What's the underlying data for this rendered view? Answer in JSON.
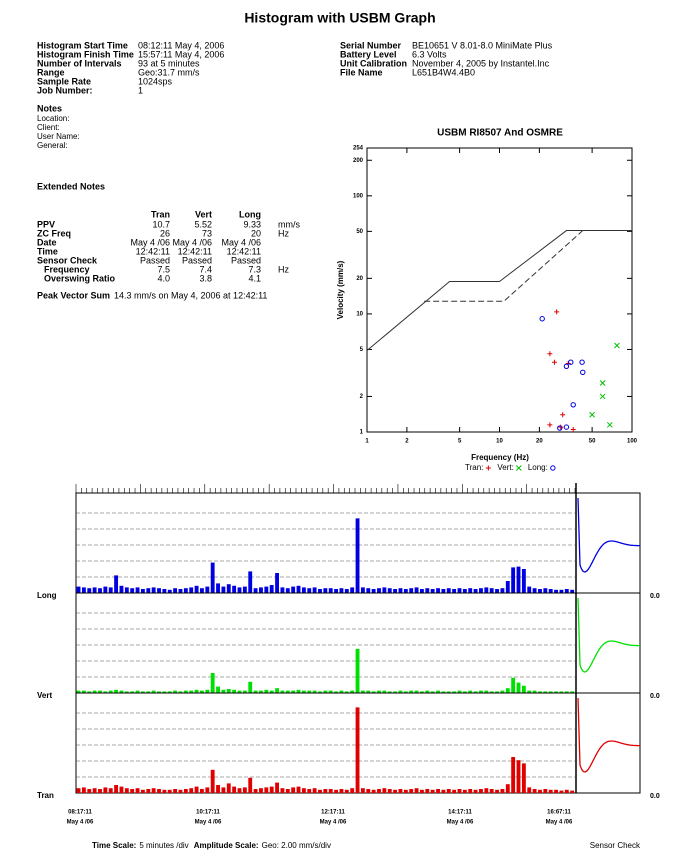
{
  "title": "Histogram with USBM Graph",
  "header_left": [
    {
      "label": "Histogram Start Time",
      "value": "08:12:11 May 4, 2006"
    },
    {
      "label": "Histogram Finish Time",
      "value": "15:57:11 May 4, 2006"
    },
    {
      "label": "Number of Intervals",
      "value": "93 at 5 minutes"
    },
    {
      "label": "Range",
      "value": "Geo:31.7 mm/s"
    },
    {
      "label": "Sample Rate",
      "value": "1024sps"
    },
    {
      "label": "Job Number:",
      "value": "1"
    }
  ],
  "notes": {
    "title": "Notes",
    "fields": [
      "Location:",
      "Client:",
      "User Name:",
      "General:"
    ]
  },
  "header_right": [
    {
      "label": "Serial Number",
      "value": "BE10651 V 8.01-8.0 MiniMate Plus"
    },
    {
      "label": "Battery Level",
      "value": "6.3 Volts"
    },
    {
      "label": "Unit Calibration",
      "value": "November 4, 2005 by Instantel.Inc"
    },
    {
      "label": "File Name",
      "value": "L651B4W4.4B0"
    }
  ],
  "extended_notes": {
    "title": "Extended Notes",
    "columns": [
      "Tran",
      "Vert",
      "Long"
    ],
    "rows": [
      {
        "label": "PPV",
        "values": [
          "10.7",
          "5.52",
          "9.33"
        ],
        "unit": "mm/s"
      },
      {
        "label": "ZC Freq",
        "values": [
          "26",
          "73",
          "20"
        ],
        "unit": "Hz"
      },
      {
        "label": "Date",
        "values": [
          "May 4 /06",
          "May 4 /06",
          "May 4 /06"
        ]
      },
      {
        "label": "Time",
        "values": [
          "12:42:11",
          "12:42:11",
          "12:42:11"
        ]
      },
      {
        "label": "Sensor Check",
        "values": [
          "Passed",
          "Passed",
          "Passed"
        ],
        "rows": [
          {
            "label": "Frequency",
            "values": [
              "7.5",
              "7.4",
              "7.3"
            ],
            "unit": "Hz"
          },
          {
            "label": "Overswing Ratio",
            "values": [
              "4.0",
              "3.8",
              "4.1"
            ]
          }
        ]
      }
    ]
  },
  "peak_vector_sum": {
    "label": "Peak Vector Sum",
    "value": "14.3 mm/s on May 4, 2006 at 12:42:11"
  },
  "usbm_chart": {
    "type": "scatter",
    "title": "USBM RI8507 And OSMRE",
    "x_label": "Frequency (Hz)",
    "y_label": "Velocity (mm/s)",
    "log_scale": true,
    "xlim": [
      1,
      100
    ],
    "ylim": [
      1,
      254
    ],
    "xticks": [
      1,
      2,
      5,
      10,
      20,
      50,
      100
    ],
    "yticks": [
      1,
      2,
      5,
      10,
      20,
      50,
      100,
      200,
      254
    ],
    "series": [
      {
        "name": "Tran:",
        "color": "#e00000",
        "marker": "plus",
        "x": [
          27,
          24,
          26,
          33,
          30,
          24,
          29,
          36
        ],
        "values": [
          10.4,
          4.6,
          3.9,
          3.8,
          1.4,
          1.15,
          1.1,
          1.05
        ]
      },
      {
        "name": "Vert:",
        "color": "#00c000",
        "marker": "cross",
        "x": [
          77,
          60,
          60,
          50,
          68
        ],
        "values": [
          5.4,
          2.6,
          2.0,
          1.4,
          1.15
        ]
      },
      {
        "name": "Long:",
        "color": "#0000e0",
        "marker": "circle",
        "x": [
          21,
          34.5,
          32,
          42.5,
          36,
          32,
          28.5,
          42
        ],
        "values": [
          9.1,
          3.9,
          3.6,
          3.2,
          1.7,
          1.1,
          1.08,
          3.9
        ]
      }
    ],
    "limit_lines": [
      {
        "style": "solid",
        "x": [
          1,
          4.2,
          10,
          32,
          100
        ],
        "values": [
          4.9,
          18.8,
          18.8,
          50.8,
          50.8
        ]
      },
      {
        "style": "dashed",
        "x": [
          2.7,
          10.8,
          42.5
        ],
        "values": [
          12.8,
          12.8,
          50.8
        ]
      }
    ]
  },
  "histogram": {
    "type": "bar",
    "ylim": [
      0,
      12.5
    ],
    "gridlines": [
      2,
      4,
      6,
      8,
      10
    ],
    "channels": [
      {
        "name": "Long",
        "color": "#0000e0",
        "scale_label": "0.0",
        "values": [
          0.8,
          0.7,
          0.6,
          0.7,
          0.6,
          0.8,
          0.7,
          2.2,
          0.9,
          0.7,
          0.6,
          0.7,
          0.5,
          0.6,
          0.7,
          0.6,
          0.5,
          0.4,
          0.6,
          0.5,
          0.6,
          0.7,
          0.9,
          0.6,
          0.8,
          3.8,
          1.2,
          0.8,
          1.1,
          0.9,
          0.7,
          0.8,
          2.7,
          0.6,
          0.7,
          0.8,
          1.0,
          2.5,
          0.7,
          0.6,
          0.8,
          0.9,
          0.7,
          0.6,
          0.7,
          0.5,
          0.6,
          0.6,
          0.5,
          0.6,
          0.5,
          0.7,
          9.33,
          0.7,
          0.6,
          0.5,
          0.6,
          0.7,
          0.6,
          0.5,
          0.6,
          0.5,
          0.6,
          0.7,
          0.5,
          0.6,
          0.5,
          0.6,
          0.5,
          0.6,
          0.5,
          0.6,
          0.5,
          0.6,
          0.5,
          0.6,
          0.7,
          0.6,
          0.5,
          0.6,
          1.5,
          3.2,
          3.3,
          3.0,
          0.8,
          0.6,
          0.5,
          0.6,
          0.5,
          0.4,
          0.4,
          0.5,
          0.4
        ]
      },
      {
        "name": "Vert",
        "color": "#00e000",
        "scale_label": "0.0",
        "values": [
          0.3,
          0.3,
          0.2,
          0.3,
          0.3,
          0.2,
          0.3,
          0.4,
          0.3,
          0.2,
          0.2,
          0.3,
          0.2,
          0.2,
          0.3,
          0.2,
          0.2,
          0.2,
          0.3,
          0.2,
          0.3,
          0.3,
          0.4,
          0.3,
          0.4,
          2.5,
          0.8,
          0.4,
          0.5,
          0.4,
          0.3,
          0.3,
          1.4,
          0.3,
          0.3,
          0.4,
          0.3,
          0.6,
          0.3,
          0.3,
          0.3,
          0.4,
          0.3,
          0.3,
          0.3,
          0.2,
          0.3,
          0.3,
          0.2,
          0.3,
          0.2,
          0.3,
          5.52,
          0.3,
          0.3,
          0.2,
          0.3,
          0.3,
          0.2,
          0.2,
          0.3,
          0.2,
          0.3,
          0.3,
          0.2,
          0.3,
          0.2,
          0.3,
          0.2,
          0.2,
          0.2,
          0.3,
          0.2,
          0.3,
          0.2,
          0.3,
          0.3,
          0.2,
          0.2,
          0.3,
          0.6,
          1.9,
          1.3,
          0.9,
          0.3,
          0.3,
          0.2,
          0.2,
          0.2,
          0.2,
          0.2,
          0.2,
          0.2
        ]
      },
      {
        "name": "Tran",
        "color": "#e00000",
        "scale_label": "0.0",
        "values": [
          0.6,
          0.7,
          0.5,
          0.6,
          0.5,
          0.7,
          0.6,
          1.0,
          0.8,
          0.6,
          0.5,
          0.6,
          0.4,
          0.5,
          0.6,
          0.5,
          0.4,
          0.4,
          0.5,
          0.4,
          0.5,
          0.6,
          0.8,
          0.5,
          0.7,
          2.9,
          1.0,
          0.7,
          1.2,
          0.8,
          0.6,
          0.7,
          1.9,
          0.5,
          0.6,
          0.7,
          0.8,
          1.3,
          0.6,
          0.5,
          0.7,
          0.8,
          0.6,
          0.5,
          0.6,
          0.4,
          0.5,
          0.5,
          0.4,
          0.5,
          0.4,
          0.6,
          10.7,
          0.6,
          0.5,
          0.4,
          0.5,
          0.6,
          0.5,
          0.4,
          0.5,
          0.4,
          0.5,
          0.6,
          0.4,
          0.5,
          0.4,
          0.5,
          0.4,
          0.5,
          0.4,
          0.5,
          0.4,
          0.5,
          0.4,
          0.5,
          0.6,
          0.5,
          0.4,
          0.5,
          1.1,
          4.5,
          4.1,
          3.7,
          0.7,
          0.5,
          0.4,
          0.5,
          0.4,
          0.4,
          0.3,
          0.4,
          0.3
        ]
      }
    ],
    "time_labels": [
      {
        "time": "08:17:11",
        "date": "May 4 /06"
      },
      {
        "time": "10:17:11",
        "date": "May 4 /06"
      },
      {
        "time": "12:17:11",
        "date": "May 4 /06"
      },
      {
        "time": "14:17:11",
        "date": "May 4 /06"
      },
      {
        "time": "16:67:11",
        "date": "May 4 /06"
      }
    ]
  },
  "footer": {
    "time_scale_label": "Time Scale:",
    "time_scale": "5 minutes /div",
    "amplitude_scale_label": "Amplitude Scale:",
    "amplitude_scale": "Geo: 2.00 mm/s/div",
    "sensor_check": "Sensor Check"
  }
}
